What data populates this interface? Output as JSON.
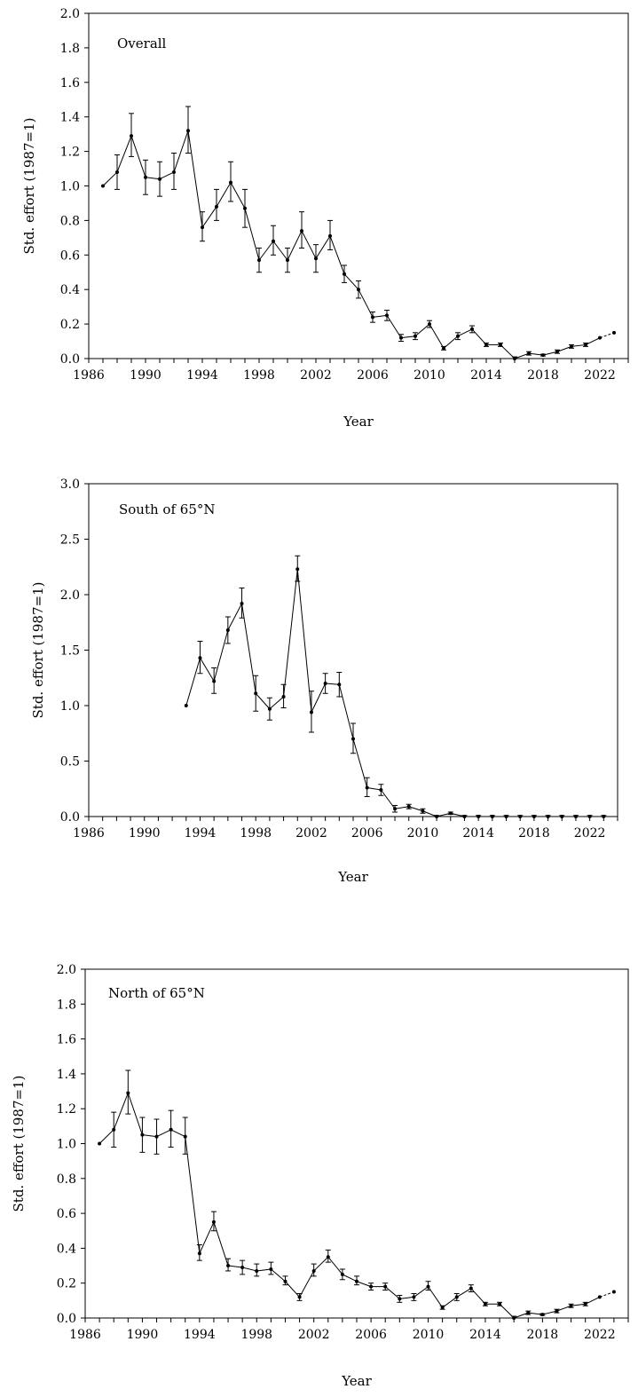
{
  "chart_data": [
    {
      "type": "line",
      "title": "Overall",
      "xlabel": "Year",
      "ylabel": "Std. effort (1987=1)",
      "xlim": [
        1986,
        2024
      ],
      "ylim": [
        0,
        2.0
      ],
      "x_ticks": [
        "1986",
        "1990",
        "1994",
        "1998",
        "2002",
        "2006",
        "2010",
        "2014",
        "2018",
        "2022"
      ],
      "y_ticks": [
        "0.0",
        "0.2",
        "0.4",
        "0.6",
        "0.8",
        "1.0",
        "1.2",
        "1.4",
        "1.6",
        "1.8",
        "2.0"
      ],
      "y_ticks_values": [
        0,
        0.2,
        0.4,
        0.6,
        0.8,
        1.0,
        1.2,
        1.4,
        1.6,
        1.8,
        2.0
      ],
      "x": [
        1987,
        1988,
        1989,
        1990,
        1991,
        1992,
        1993,
        1994,
        1995,
        1996,
        1997,
        1998,
        1999,
        2000,
        2001,
        2002,
        2003,
        2004,
        2005,
        2006,
        2007,
        2008,
        2009,
        2010,
        2011,
        2012,
        2013,
        2014,
        2015,
        2016,
        2017,
        2018,
        2019,
        2020,
        2021,
        2022,
        2023
      ],
      "values": [
        1.0,
        1.08,
        1.29,
        1.05,
        1.04,
        1.08,
        1.32,
        0.76,
        0.88,
        1.02,
        0.87,
        0.57,
        0.68,
        0.57,
        0.74,
        0.58,
        0.71,
        0.49,
        0.4,
        0.24,
        0.25,
        0.12,
        0.13,
        0.2,
        0.06,
        0.13,
        0.17,
        0.08,
        0.08,
        0.0,
        0.03,
        0.02,
        0.04,
        0.07,
        0.08,
        0.12,
        0.15
      ],
      "err_low": [
        null,
        0.98,
        1.17,
        0.95,
        0.94,
        0.98,
        1.19,
        0.68,
        0.8,
        0.91,
        0.76,
        0.5,
        0.6,
        0.5,
        0.64,
        0.5,
        0.63,
        0.44,
        0.35,
        0.21,
        0.22,
        0.1,
        0.11,
        0.18,
        0.05,
        0.11,
        0.15,
        0.07,
        0.07,
        0.0,
        0.02,
        0.015,
        0.03,
        0.06,
        0.07,
        null,
        null
      ],
      "err_high": [
        null,
        1.18,
        1.42,
        1.15,
        1.14,
        1.19,
        1.46,
        0.85,
        0.98,
        1.14,
        0.98,
        0.64,
        0.77,
        0.64,
        0.85,
        0.66,
        0.8,
        0.54,
        0.45,
        0.27,
        0.28,
        0.14,
        0.15,
        0.22,
        0.07,
        0.15,
        0.19,
        0.09,
        0.09,
        0.01,
        0.04,
        0.025,
        0.05,
        0.08,
        0.09,
        null,
        null
      ],
      "dashed_from": 2022
    },
    {
      "type": "line",
      "title": "South of 65°N",
      "xlabel": "Year",
      "ylabel": "Std. effort (1987=1)",
      "xlim": [
        1986,
        2024
      ],
      "ylim": [
        0,
        3.0
      ],
      "x_ticks": [
        "1986",
        "1990",
        "1994",
        "1998",
        "2002",
        "2006",
        "2010",
        "2014",
        "2018",
        "2022"
      ],
      "y_ticks": [
        "0.0",
        "0.5",
        "1.0",
        "1.5",
        "2.0",
        "2.5",
        "3.0"
      ],
      "y_ticks_values": [
        0,
        0.5,
        1.0,
        1.5,
        2.0,
        2.5,
        3.0
      ],
      "x": [
        1993,
        1994,
        1995,
        1996,
        1997,
        1998,
        1999,
        2000,
        2001,
        2002,
        2003,
        2004,
        2005,
        2006,
        2007,
        2008,
        2009,
        2010,
        2011,
        2012,
        2013,
        2014,
        2015,
        2016,
        2017,
        2018,
        2019,
        2020,
        2021,
        2022,
        2023
      ],
      "values": [
        1.0,
        1.43,
        1.22,
        1.68,
        1.92,
        1.11,
        0.97,
        1.08,
        2.23,
        0.94,
        1.2,
        1.19,
        0.7,
        0.26,
        0.24,
        0.07,
        0.09,
        0.05,
        0.0,
        0.03,
        0.0,
        0.0,
        0.0,
        0.0,
        0.0,
        0.0,
        0.0,
        0.0,
        0.0,
        0.0,
        0.0
      ],
      "err_low": [
        null,
        1.29,
        1.11,
        1.56,
        1.79,
        0.95,
        0.87,
        0.98,
        2.12,
        0.76,
        1.11,
        1.08,
        0.57,
        0.18,
        0.19,
        0.04,
        0.07,
        0.03,
        0.0,
        0.02,
        0.0,
        0.0,
        0.0,
        0.0,
        0.0,
        0.0,
        0.0,
        0.0,
        0.0,
        0.0,
        0.0
      ],
      "err_high": [
        null,
        1.58,
        1.34,
        1.8,
        2.06,
        1.27,
        1.07,
        1.19,
        2.35,
        1.13,
        1.29,
        1.3,
        0.84,
        0.35,
        0.29,
        0.1,
        0.11,
        0.07,
        0.01,
        0.04,
        0.01,
        0.01,
        0.01,
        0.01,
        0.01,
        0.01,
        0.01,
        0.01,
        0.01,
        0.01,
        0.01
      ],
      "dashed_from": null
    },
    {
      "type": "line",
      "title": "North of 65°N",
      "xlabel": "Year",
      "ylabel": "Std. effort (1987=1)",
      "xlim": [
        1986,
        2024
      ],
      "ylim": [
        0,
        2.0
      ],
      "x_ticks": [
        "1986",
        "1990",
        "1994",
        "1998",
        "2002",
        "2006",
        "2010",
        "2014",
        "2018",
        "2022"
      ],
      "y_ticks": [
        "0.0",
        "0.2",
        "0.4",
        "0.6",
        "0.8",
        "1.0",
        "1.2",
        "1.4",
        "1.6",
        "1.8",
        "2.0"
      ],
      "y_ticks_values": [
        0,
        0.2,
        0.4,
        0.6,
        0.8,
        1.0,
        1.2,
        1.4,
        1.6,
        1.8,
        2.0
      ],
      "x": [
        1987,
        1988,
        1989,
        1990,
        1991,
        1992,
        1993,
        1994,
        1995,
        1996,
        1997,
        1998,
        1999,
        2000,
        2001,
        2002,
        2003,
        2004,
        2005,
        2006,
        2007,
        2008,
        2009,
        2010,
        2011,
        2012,
        2013,
        2014,
        2015,
        2016,
        2017,
        2018,
        2019,
        2020,
        2021,
        2022,
        2023
      ],
      "values": [
        1.0,
        1.08,
        1.29,
        1.05,
        1.04,
        1.08,
        1.04,
        0.37,
        0.55,
        0.3,
        0.29,
        0.27,
        0.28,
        0.21,
        0.12,
        0.27,
        0.35,
        0.25,
        0.21,
        0.18,
        0.18,
        0.11,
        0.12,
        0.18,
        0.06,
        0.12,
        0.17,
        0.08,
        0.08,
        0.0,
        0.03,
        0.02,
        0.04,
        0.07,
        0.08,
        0.12,
        0.15
      ],
      "err_low": [
        null,
        0.98,
        1.17,
        0.95,
        0.94,
        0.98,
        0.94,
        0.33,
        0.5,
        0.27,
        0.25,
        0.24,
        0.25,
        0.19,
        0.1,
        0.24,
        0.32,
        0.22,
        0.19,
        0.16,
        0.16,
        0.09,
        0.1,
        0.16,
        0.05,
        0.1,
        0.15,
        0.07,
        0.07,
        0.0,
        0.02,
        0.015,
        0.03,
        0.06,
        0.07,
        null,
        null
      ],
      "err_high": [
        null,
        1.18,
        1.42,
        1.15,
        1.14,
        1.19,
        1.15,
        0.42,
        0.61,
        0.34,
        0.33,
        0.31,
        0.32,
        0.24,
        0.14,
        0.31,
        0.39,
        0.28,
        0.24,
        0.2,
        0.2,
        0.13,
        0.14,
        0.21,
        0.07,
        0.14,
        0.19,
        0.09,
        0.09,
        0.01,
        0.04,
        0.025,
        0.05,
        0.08,
        0.09,
        null,
        null
      ],
      "dashed_from": 2022
    }
  ]
}
